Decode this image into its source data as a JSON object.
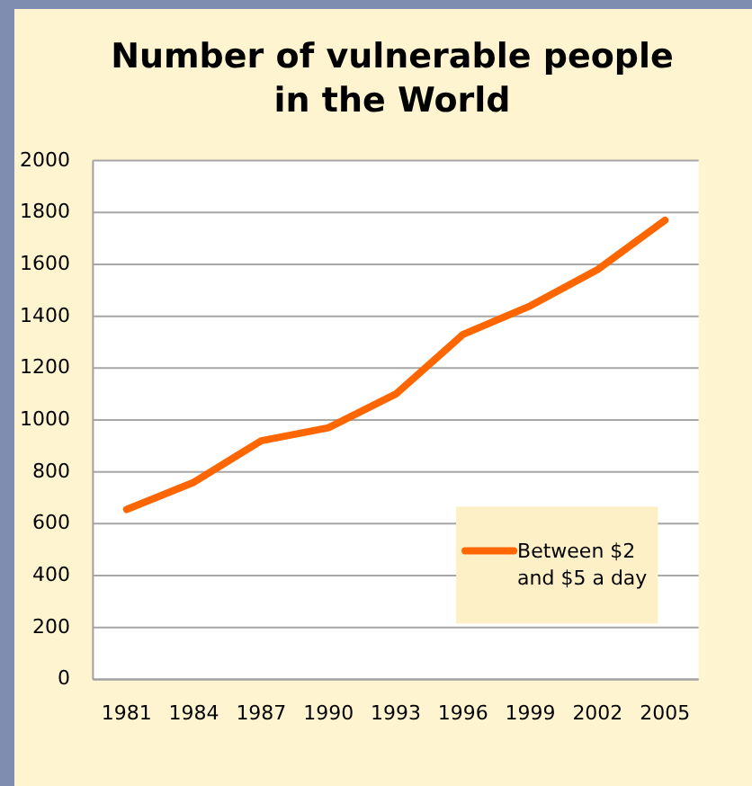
{
  "chart_data": {
    "type": "line",
    "title": "Number of vulnerable people in the World",
    "categories": [
      "1981",
      "1984",
      "1987",
      "1990",
      "1993",
      "1996",
      "1999",
      "2002",
      "2005"
    ],
    "series": [
      {
        "name": "Between $2 and $5 a day",
        "color": "#ff6600",
        "values": [
          655,
          760,
          920,
          970,
          1100,
          1330,
          1440,
          1580,
          1770
        ]
      }
    ],
    "ylim": [
      0,
      2000
    ],
    "yticks": [
      0,
      200,
      400,
      600,
      800,
      1000,
      1200,
      1400,
      1600,
      1800,
      2000
    ],
    "grid": "y",
    "legend": "bottom right",
    "line_style": "solid"
  }
}
